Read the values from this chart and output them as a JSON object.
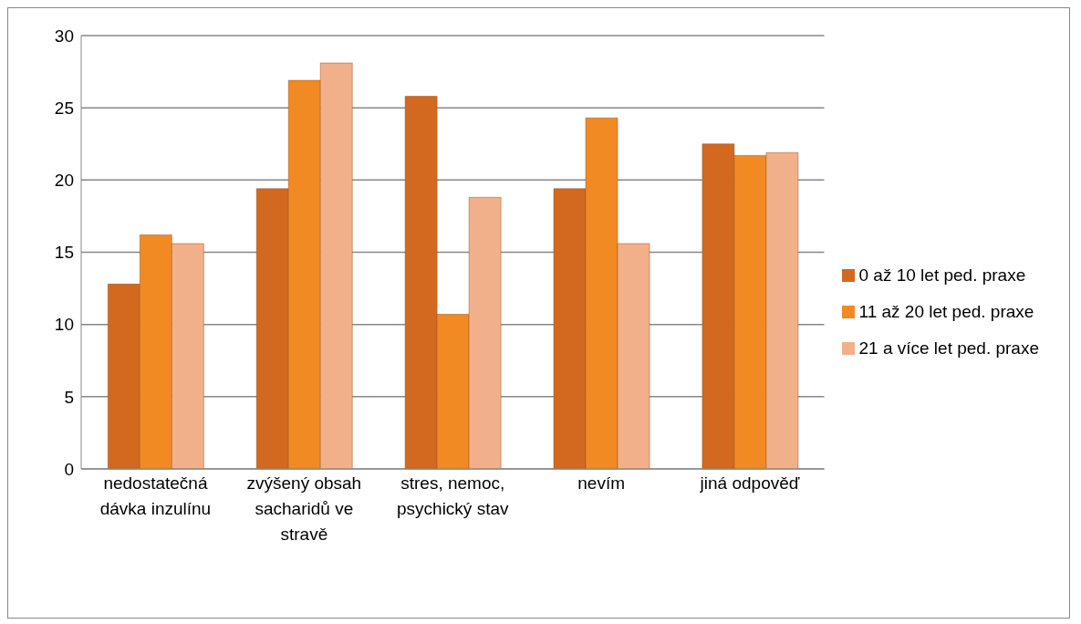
{
  "chart_data": {
    "type": "bar",
    "categories": [
      "nedostatečná dávka inzulínu",
      "zvýšený obsah sacharidů ve stravě",
      "stres, nemoc, psychický stav",
      "nevím",
      "jiná odpověď"
    ],
    "series": [
      {
        "name": "0 až 10 let ped. praxe",
        "color": "#d2691e",
        "values": [
          12.8,
          19.4,
          25.8,
          19.4,
          22.5
        ]
      },
      {
        "name": "11 až 20 let ped. praxe",
        "color": "#f28a24",
        "values": [
          16.2,
          26.9,
          10.7,
          24.3,
          21.7
        ]
      },
      {
        "name": "21 a více let ped. praxe",
        "color": "#f2b08a",
        "values": [
          15.6,
          28.1,
          18.8,
          15.6,
          21.9
        ]
      }
    ],
    "ylim": [
      0,
      30
    ],
    "yticks": [
      0,
      5,
      10,
      15,
      20,
      25,
      30
    ],
    "grid": "y",
    "legend": "right"
  }
}
